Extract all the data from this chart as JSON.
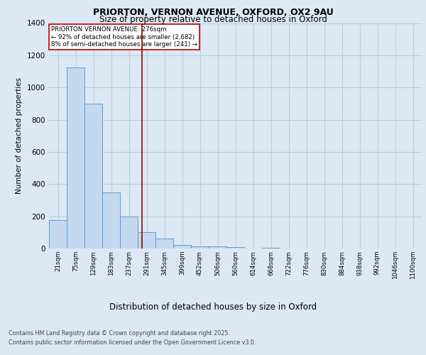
{
  "title1": "PRIORTON, VERNON AVENUE, OXFORD, OX2 9AU",
  "title2": "Size of property relative to detached houses in Oxford",
  "xlabel": "Distribution of detached houses by size in Oxford",
  "ylabel": "Number of detached properties",
  "bar_labels": [
    "21sqm",
    "75sqm",
    "129sqm",
    "183sqm",
    "237sqm",
    "291sqm",
    "345sqm",
    "399sqm",
    "452sqm",
    "506sqm",
    "560sqm",
    "614sqm",
    "668sqm",
    "722sqm",
    "776sqm",
    "830sqm",
    "884sqm",
    "938sqm",
    "992sqm",
    "1046sqm",
    "1100sqm"
  ],
  "bar_values": [
    175,
    1125,
    900,
    350,
    200,
    100,
    60,
    20,
    12,
    12,
    8,
    0,
    5,
    0,
    0,
    0,
    0,
    0,
    0,
    0,
    0
  ],
  "bar_color": "#c5d9ee",
  "bar_edge_color": "#5b9bd5",
  "vline_color": "#8b0000",
  "vline_x": 4.72,
  "ylim": [
    0,
    1400
  ],
  "yticks": [
    0,
    200,
    400,
    600,
    800,
    1000,
    1200,
    1400
  ],
  "annotation_text": "PRIORTON VERNON AVENUE: 276sqm\n← 92% of detached houses are smaller (2,682)\n8% of semi-detached houses are larger (241) →",
  "annotation_box_color": "#ffffff",
  "annotation_box_edge": "#c00000",
  "footer1": "Contains HM Land Registry data © Crown copyright and database right 2025.",
  "footer2": "Contains public sector information licensed under the Open Government Licence v3.0.",
  "bg_color": "#dce9f5",
  "plot_bg_color": "#dce9f5",
  "grid_color": "#b8cfe0"
}
